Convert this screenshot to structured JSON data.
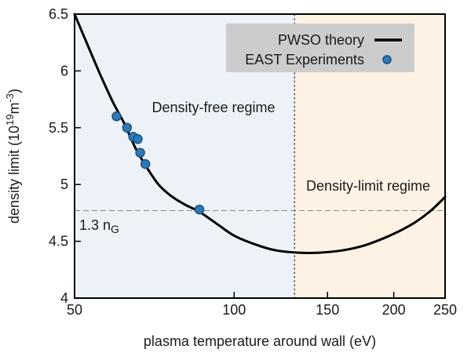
{
  "figure": {
    "ylabel": {
      "pre": "density limit (10",
      "sup1": "19",
      "mid": "m",
      "sup2": "-3",
      "post": ")"
    },
    "threshold_label": {
      "main": "1.3 n",
      "sub": "G"
    }
  },
  "chart_data": {
    "type": "line",
    "title": "",
    "xlabel": "plasma temperature around wall (eV)",
    "ylabel": "density limit (10^19 m^-3)",
    "x_scale": "log",
    "xlim": [
      50,
      250
    ],
    "ylim": [
      4,
      6.5
    ],
    "x_ticks": [
      50,
      100,
      150,
      200,
      250
    ],
    "y_ticks": [
      4,
      4.5,
      5,
      5.5,
      6,
      6.5
    ],
    "grid": false,
    "legend_position": "top-right",
    "legend_bg": "#cccccc",
    "series": [
      {
        "name": "PWSO theory",
        "type": "line",
        "color": "#000000",
        "points": [
          [
            50,
            6.5
          ],
          [
            53,
            6.22
          ],
          [
            56,
            5.96
          ],
          [
            59,
            5.73
          ],
          [
            62,
            5.54
          ],
          [
            65,
            5.33
          ],
          [
            68,
            5.17
          ],
          [
            72,
            5.0
          ],
          [
            76,
            4.9
          ],
          [
            81,
            4.82
          ],
          [
            86,
            4.76
          ],
          [
            93,
            4.65
          ],
          [
            100,
            4.55
          ],
          [
            110,
            4.47
          ],
          [
            120,
            4.42
          ],
          [
            132,
            4.4
          ],
          [
            145,
            4.4
          ],
          [
            160,
            4.42
          ],
          [
            175,
            4.46
          ],
          [
            190,
            4.52
          ],
          [
            205,
            4.59
          ],
          [
            220,
            4.67
          ],
          [
            235,
            4.77
          ],
          [
            250,
            4.89
          ]
        ]
      },
      {
        "name": "EAST Experiments",
        "type": "scatter",
        "color": "#2e7ab8",
        "edge_color": "#1c4f7c",
        "points": [
          [
            60,
            5.6
          ],
          [
            62.8,
            5.5
          ],
          [
            64.5,
            5.42
          ],
          [
            65.8,
            5.4
          ],
          [
            66.5,
            5.28
          ],
          [
            68,
            5.18
          ],
          [
            86,
            4.78
          ]
        ]
      }
    ],
    "annotations": {
      "threshold_line": {
        "y": 4.77,
        "label": "1.3 n_G",
        "style": "dashed",
        "color": "#8a8a8a",
        "label_color": "#2f74a8"
      },
      "regime_divider": {
        "x": 130,
        "style": "dotted",
        "color": "#3a3a3a"
      },
      "regions": [
        {
          "label": "Density-free regime",
          "x_range": [
            50,
            130
          ],
          "fill": "#edf2f9",
          "label_color": "#3585c0"
        },
        {
          "label": "Density-limit regime",
          "x_range": [
            130,
            250
          ],
          "fill": "#fdf2e4",
          "label_color": "#d4571e"
        }
      ]
    }
  }
}
